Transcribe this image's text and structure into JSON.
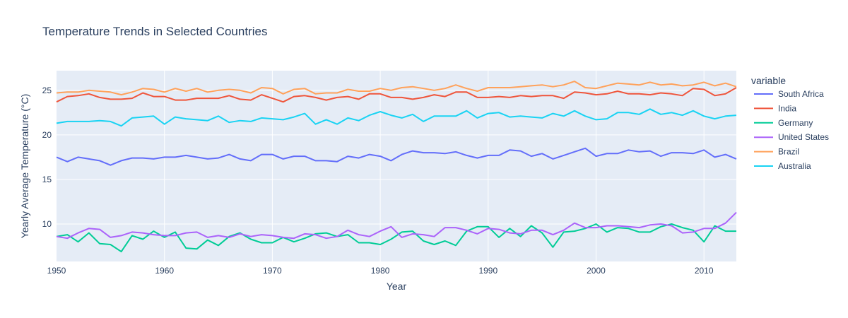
{
  "chart_data": {
    "type": "line",
    "title": "Temperature Trends in Selected Countries",
    "xlabel": "Year",
    "ylabel": "Yearly Average Temperature (°C)",
    "xlim": [
      1950,
      2013
    ],
    "ylim": [
      5.8,
      27.2
    ],
    "xticks": [
      1950,
      1960,
      1970,
      1980,
      1990,
      2000,
      2010
    ],
    "yticks": [
      10,
      15,
      20,
      25
    ],
    "grid": true,
    "legend_title": "variable",
    "legend_position": "right",
    "x": [
      1950,
      1951,
      1952,
      1953,
      1954,
      1955,
      1956,
      1957,
      1958,
      1959,
      1960,
      1961,
      1962,
      1963,
      1964,
      1965,
      1966,
      1967,
      1968,
      1969,
      1970,
      1971,
      1972,
      1973,
      1974,
      1975,
      1976,
      1977,
      1978,
      1979,
      1980,
      1981,
      1982,
      1983,
      1984,
      1985,
      1986,
      1987,
      1988,
      1989,
      1990,
      1991,
      1992,
      1993,
      1994,
      1995,
      1996,
      1997,
      1998,
      1999,
      2000,
      2001,
      2002,
      2003,
      2004,
      2005,
      2006,
      2007,
      2008,
      2009,
      2010,
      2011,
      2012,
      2013
    ],
    "series": [
      {
        "name": "South Africa",
        "color": "#636efa",
        "values": [
          17.5,
          17.0,
          17.5,
          17.3,
          17.1,
          16.6,
          17.1,
          17.4,
          17.4,
          17.3,
          17.5,
          17.5,
          17.7,
          17.5,
          17.3,
          17.4,
          17.8,
          17.3,
          17.1,
          17.8,
          17.8,
          17.3,
          17.6,
          17.6,
          17.1,
          17.1,
          17.0,
          17.6,
          17.4,
          17.8,
          17.6,
          17.1,
          17.8,
          18.2,
          18.0,
          18.0,
          17.9,
          18.1,
          17.7,
          17.4,
          17.7,
          17.7,
          18.3,
          18.2,
          17.6,
          17.9,
          17.3,
          17.7,
          18.1,
          18.5,
          17.6,
          17.9,
          17.9,
          18.3,
          18.1,
          18.2,
          17.6,
          18.0,
          18.0,
          17.9,
          18.3,
          17.5,
          17.8,
          17.3
        ]
      },
      {
        "name": "India",
        "color": "#ef553b",
        "values": [
          23.7,
          24.3,
          24.4,
          24.6,
          24.2,
          24.0,
          24.0,
          24.1,
          24.7,
          24.3,
          24.3,
          23.9,
          23.9,
          24.1,
          24.1,
          24.1,
          24.4,
          24.0,
          23.9,
          24.5,
          24.1,
          23.7,
          24.3,
          24.4,
          24.2,
          23.9,
          24.2,
          24.3,
          24.0,
          24.6,
          24.6,
          24.2,
          24.2,
          24.0,
          24.2,
          24.5,
          24.3,
          24.8,
          24.8,
          24.2,
          24.2,
          24.3,
          24.2,
          24.4,
          24.3,
          24.4,
          24.4,
          24.1,
          24.8,
          24.7,
          24.5,
          24.6,
          24.9,
          24.6,
          24.6,
          24.5,
          24.7,
          24.6,
          24.4,
          25.2,
          25.1,
          24.4,
          24.6,
          25.3
        ]
      },
      {
        "name": "Germany",
        "color": "#00cc96",
        "values": [
          8.6,
          8.8,
          8.0,
          9.0,
          7.8,
          7.7,
          6.9,
          8.7,
          8.3,
          9.2,
          8.5,
          9.1,
          7.3,
          7.2,
          8.2,
          7.6,
          8.6,
          9.0,
          8.3,
          7.9,
          7.9,
          8.5,
          8.0,
          8.4,
          8.9,
          9.0,
          8.6,
          8.8,
          7.9,
          7.9,
          7.7,
          8.3,
          9.1,
          9.2,
          8.1,
          7.7,
          8.1,
          7.6,
          9.2,
          9.7,
          9.7,
          8.5,
          9.5,
          8.6,
          9.8,
          9.0,
          7.4,
          9.1,
          9.2,
          9.5,
          10.0,
          9.1,
          9.6,
          9.5,
          9.1,
          9.1,
          9.7,
          10.0,
          9.6,
          9.3,
          8.0,
          9.8,
          9.2,
          9.2
        ]
      },
      {
        "name": "United States",
        "color": "#ab63fa",
        "values": [
          8.6,
          8.4,
          9.0,
          9.5,
          9.4,
          8.5,
          8.7,
          9.1,
          9.0,
          8.8,
          8.7,
          8.7,
          9.0,
          9.1,
          8.5,
          8.7,
          8.5,
          8.9,
          8.6,
          8.8,
          8.7,
          8.5,
          8.4,
          8.9,
          8.8,
          8.4,
          8.6,
          9.3,
          8.8,
          8.6,
          9.2,
          9.7,
          8.5,
          8.9,
          8.8,
          8.6,
          9.6,
          9.6,
          9.3,
          8.9,
          9.5,
          9.4,
          9.0,
          8.9,
          9.3,
          9.3,
          8.8,
          9.3,
          10.1,
          9.6,
          9.6,
          9.8,
          9.8,
          9.7,
          9.6,
          9.9,
          10.0,
          9.8,
          9.0,
          9.1,
          9.5,
          9.5,
          10.1,
          11.3
        ]
      },
      {
        "name": "Brazil",
        "color": "#ffa15a",
        "values": [
          24.7,
          24.8,
          24.8,
          25.0,
          24.9,
          24.8,
          24.5,
          24.8,
          25.2,
          25.1,
          24.8,
          25.2,
          24.9,
          25.2,
          24.8,
          25.0,
          25.1,
          25.0,
          24.7,
          25.3,
          25.2,
          24.6,
          25.1,
          25.2,
          24.6,
          24.7,
          24.7,
          25.1,
          24.9,
          24.9,
          25.2,
          25.0,
          25.3,
          25.4,
          25.2,
          25.0,
          25.2,
          25.6,
          25.2,
          24.9,
          25.3,
          25.3,
          25.3,
          25.4,
          25.5,
          25.6,
          25.4,
          25.6,
          26.0,
          25.3,
          25.2,
          25.5,
          25.8,
          25.7,
          25.6,
          25.9,
          25.6,
          25.7,
          25.5,
          25.6,
          25.9,
          25.5,
          25.8,
          25.4
        ]
      },
      {
        "name": "Australia",
        "color": "#19d3f3",
        "values": [
          21.3,
          21.5,
          21.5,
          21.5,
          21.6,
          21.5,
          21.0,
          21.9,
          22.0,
          22.1,
          21.2,
          22.0,
          21.8,
          21.7,
          21.6,
          22.1,
          21.4,
          21.6,
          21.5,
          21.9,
          21.8,
          21.7,
          22.0,
          22.4,
          21.2,
          21.7,
          21.2,
          21.9,
          21.6,
          22.2,
          22.6,
          22.2,
          21.9,
          22.3,
          21.5,
          22.1,
          22.1,
          22.1,
          22.7,
          21.9,
          22.4,
          22.5,
          22.0,
          22.1,
          22.0,
          21.9,
          22.4,
          22.1,
          22.7,
          22.1,
          21.7,
          21.8,
          22.5,
          22.5,
          22.3,
          22.9,
          22.3,
          22.5,
          22.2,
          22.7,
          22.1,
          21.8,
          22.1,
          22.2
        ]
      }
    ]
  }
}
